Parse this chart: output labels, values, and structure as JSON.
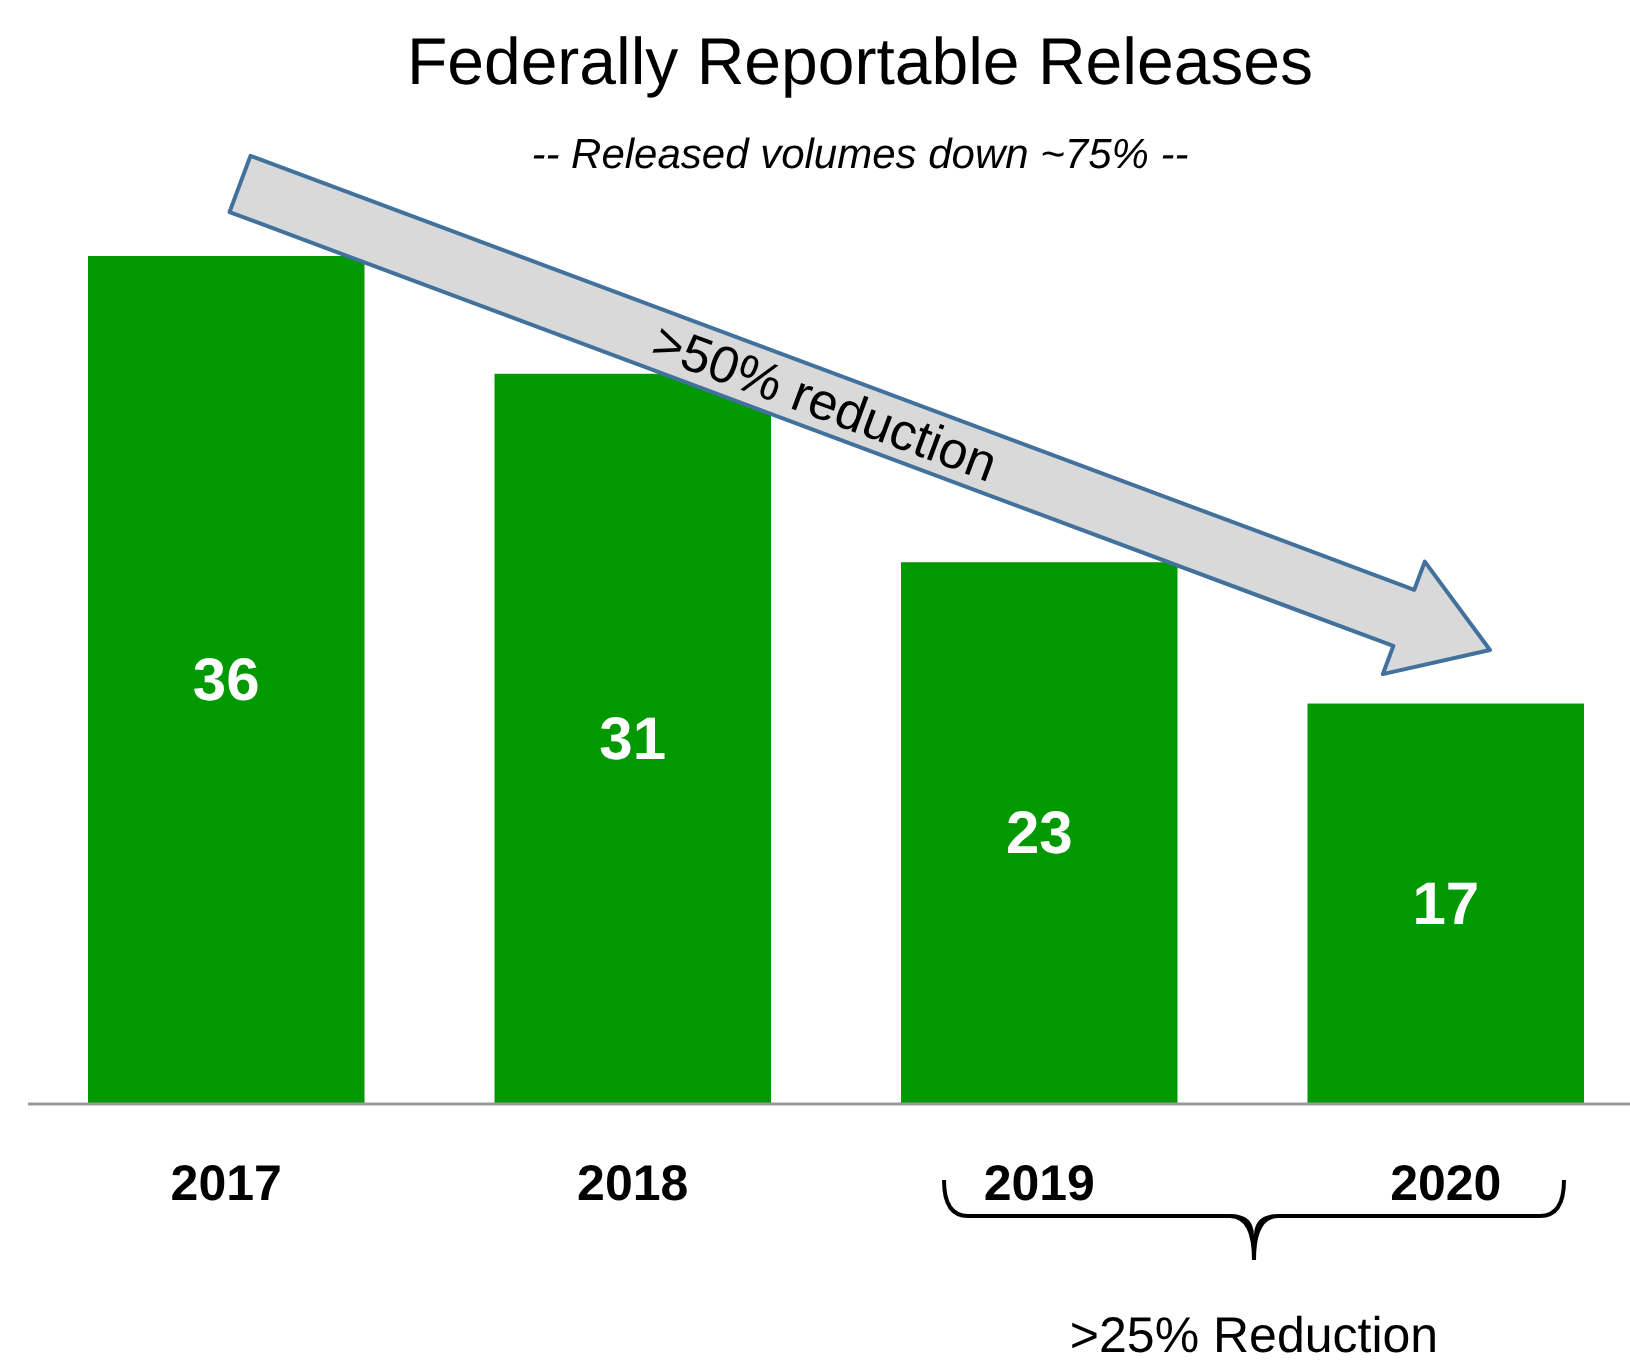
{
  "chart_data": {
    "type": "bar",
    "title": "Federally Reportable Releases",
    "subtitle": "-- Released volumes down ~75% --",
    "categories": [
      "2017",
      "2018",
      "2019",
      "2020"
    ],
    "values": [
      36,
      31,
      23,
      17
    ],
    "color": "#009900",
    "data_labels": true,
    "annotations": [
      ">50% reduction",
      ">25% Reduction"
    ]
  }
}
